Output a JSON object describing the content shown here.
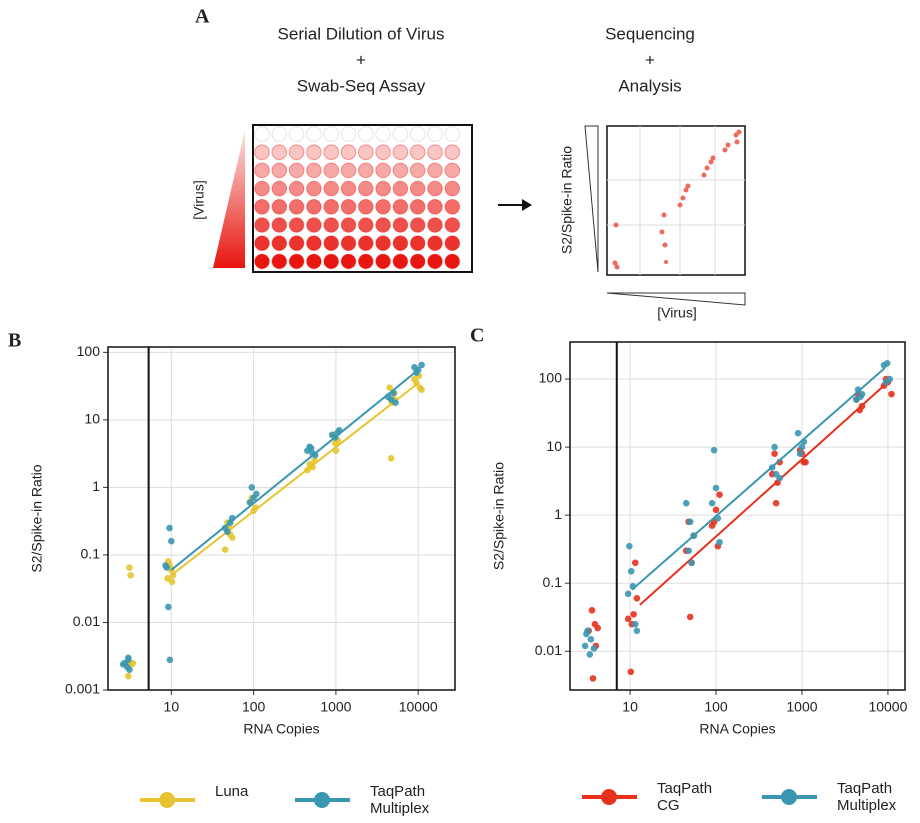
{
  "panel_a": {
    "label": "A",
    "left_title": [
      "Serial Dilution of Virus",
      "+",
      "Swab-Seq Assay"
    ],
    "right_title": [
      "Sequencing",
      "+",
      "Analysis"
    ],
    "plate_axis": "[Virus]",
    "plot_y": "S2/Spike-in Ratio",
    "plot_x": "[Virus]"
  },
  "chart_data": [
    {
      "type": "scatter",
      "panel": "B",
      "xlabel": "RNA Copies",
      "ylabel": "S2/Spike-in Ratio",
      "xscale": "log",
      "yscale": "log",
      "grid": true,
      "xlim": [
        1.7,
        28000
      ],
      "xticks": [
        10,
        100,
        1000,
        10000
      ],
      "ylim": [
        0.001,
        120
      ],
      "yticks": [
        0.001,
        0.01,
        0.1,
        1,
        10,
        100
      ],
      "vline": 5.3,
      "series": [
        {
          "name": "Luna",
          "color": "#e6c530",
          "x": [
            3.1,
            3.2,
            2.9,
            3.3,
            3.0,
            3.4,
            9.2,
            10.0,
            9.0,
            10.5,
            9.6,
            10.2,
            48,
            52,
            45,
            55,
            50,
            95,
            105,
            100,
            92,
            480,
            520,
            450,
            550,
            500,
            950,
            1050,
            1000,
            980,
            4500,
            5200,
            4800,
            4700,
            5100,
            9500,
            10500,
            9000,
            11000,
            10200
          ],
          "values": [
            0.065,
            0.05,
            0.0025,
            0.0024,
            0.0016,
            0.0025,
            0.08,
            0.06,
            0.045,
            0.05,
            0.07,
            0.04,
            0.3,
            0.2,
            0.12,
            0.18,
            0.25,
            0.7,
            0.5,
            0.45,
            0.6,
            2.2,
            2.0,
            1.8,
            2.5,
            2.1,
            6,
            5,
            3.5,
            4.5,
            30,
            20,
            18,
            2.7,
            25,
            35,
            30,
            40,
            28,
            45
          ],
          "fit_x": [
            10,
            10000
          ],
          "fit_values": [
            0.05,
            35
          ]
        },
        {
          "name": "TaqPath Multiplex",
          "color": "#3b97b1",
          "x": [
            2.7,
            3.0,
            2.9,
            3.1,
            2.6,
            3.0,
            9.5,
            10.0,
            8.5,
            9.2,
            9.6,
            8.8,
            45,
            52,
            48,
            55,
            90,
            100,
            95,
            108,
            450,
            520,
            480,
            560,
            500,
            900,
            1050,
            980,
            1100,
            4300,
            5000,
            4700,
            5300,
            9000,
            10000,
            11000,
            9500
          ],
          "values": [
            0.0025,
            0.0028,
            0.0022,
            0.002,
            0.0024,
            0.003,
            0.25,
            0.16,
            0.07,
            0.017,
            0.0028,
            0.065,
            0.25,
            0.3,
            0.22,
            0.35,
            0.6,
            0.7,
            1.0,
            0.8,
            3.5,
            3.2,
            4.0,
            3.0,
            3.8,
            6,
            6.5,
            5.5,
            7,
            22,
            25,
            20,
            18,
            60,
            55,
            65,
            50
          ],
          "fit_x": [
            10,
            10000
          ],
          "fit_values": [
            0.06,
            55
          ]
        }
      ]
    },
    {
      "type": "scatter",
      "panel": "C",
      "xlabel": "RNA Copies",
      "ylabel": "S2/Spike-in Ratio",
      "xscale": "log",
      "yscale": "log",
      "grid": true,
      "xlim": [
        2.0,
        15800
      ],
      "xticks": [
        10,
        100,
        1000,
        10000
      ],
      "ylim": [
        0.0027,
        350
      ],
      "yticks": [
        0.01,
        0.1,
        1,
        10,
        100
      ],
      "vline": 7,
      "series": [
        {
          "name": "TaqPath CG",
          "color": "#e6311c",
          "x": [
            3.6,
            3.9,
            3.3,
            4.0,
            3.7,
            4.2,
            9.5,
            10.5,
            11.5,
            10.2,
            11.0,
            12.0,
            48,
            55,
            45,
            50,
            52,
            95,
            105,
            110,
            100,
            90,
            480,
            520,
            450,
            500,
            550,
            950,
            1050,
            1000,
            1100,
            4500,
            5000,
            4700,
            4300,
            9000,
            10000,
            11000,
            9500
          ],
          "values": [
            0.04,
            0.025,
            0.02,
            0.012,
            0.004,
            0.022,
            0.03,
            0.025,
            0.2,
            0.005,
            0.035,
            0.06,
            0.8,
            0.5,
            0.3,
            0.032,
            0.2,
            0.8,
            0.35,
            2.0,
            1.2,
            0.7,
            8,
            3,
            4,
            1.5,
            6,
            9,
            6,
            8,
            6,
            60,
            40,
            35,
            50,
            80,
            90,
            60,
            100
          ],
          "fit_x": [
            13,
            9200
          ],
          "fit_values": [
            0.048,
            82
          ]
        },
        {
          "name": "TaqPath Multiplex",
          "color": "#3b97b1",
          "x": [
            3.2,
            3.5,
            3.0,
            3.8,
            3.4,
            3.1,
            9.8,
            10.3,
            10.8,
            9.5,
            11.5,
            12.0,
            45,
            50,
            55,
            48,
            52,
            95,
            100,
            90,
            105,
            110,
            450,
            500,
            550,
            480,
            900,
            1000,
            1050,
            950,
            4500,
            5000,
            4300,
            4800,
            9000,
            9800,
            10500,
            9500
          ],
          "values": [
            0.02,
            0.015,
            0.012,
            0.011,
            0.009,
            0.018,
            0.35,
            0.15,
            0.09,
            0.07,
            0.025,
            0.02,
            1.5,
            0.8,
            0.5,
            0.3,
            0.2,
            9,
            2.5,
            1.5,
            0.9,
            0.4,
            5,
            4,
            3.5,
            10,
            16,
            10,
            12,
            8,
            70,
            60,
            50,
            55,
            160,
            170,
            100,
            90
          ],
          "fit_x": [
            10.5,
            9200
          ],
          "fit_values": [
            0.08,
            145
          ]
        }
      ]
    }
  ]
}
